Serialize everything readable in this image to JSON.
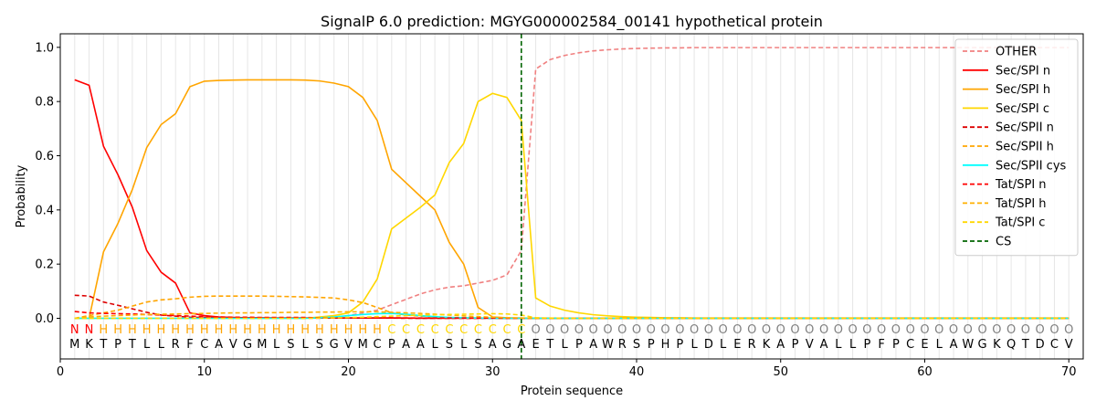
{
  "chart_data": {
    "type": "line",
    "title": "SignalP 6.0 prediction: MGYG000002584_00141 hypothetical protein",
    "xlabel": "Protein sequence",
    "ylabel": "Probability",
    "xlim": [
      0,
      71
    ],
    "ylim": [
      -0.15,
      1.05
    ],
    "xticks": [
      0,
      10,
      20,
      30,
      40,
      50,
      60,
      70
    ],
    "yticks": [
      0.0,
      0.2,
      0.4,
      0.6,
      0.8,
      1.0
    ],
    "xtick_labels": [
      "0",
      "10",
      "20",
      "30",
      "40",
      "50",
      "60",
      "70"
    ],
    "ytick_labels": [
      "0.0",
      "0.2",
      "0.4",
      "0.6",
      "0.8",
      "1.0"
    ],
    "grid": "vertical lines at each residue position",
    "legend_position": "top-right",
    "cleavage_site": 32,
    "sequence": [
      "M",
      "K",
      "T",
      "P",
      "T",
      "L",
      "L",
      "R",
      "F",
      "C",
      "A",
      "V",
      "G",
      "M",
      "L",
      "S",
      "L",
      "S",
      "G",
      "V",
      "M",
      "C",
      "P",
      "A",
      "A",
      "L",
      "S",
      "L",
      "S",
      "A",
      "G",
      "A",
      "E",
      "T",
      "L",
      "P",
      "A",
      "W",
      "R",
      "S",
      "P",
      "H",
      "P",
      "L",
      "D",
      "L",
      "E",
      "R",
      "K",
      "A",
      "P",
      "V",
      "A",
      "L",
      "L",
      "P",
      "F",
      "P",
      "C",
      "E",
      "L",
      "A",
      "W",
      "G",
      "K",
      "Q",
      "T",
      "D",
      "C",
      "V"
    ],
    "regions": [
      "N",
      "N",
      "H",
      "H",
      "H",
      "H",
      "H",
      "H",
      "H",
      "H",
      "H",
      "H",
      "H",
      "H",
      "H",
      "H",
      "H",
      "H",
      "H",
      "H",
      "H",
      "H",
      "C",
      "C",
      "C",
      "C",
      "C",
      "C",
      "C",
      "C",
      "C",
      "C",
      "O",
      "O",
      "O",
      "O",
      "O",
      "O",
      "O",
      "O",
      "O",
      "O",
      "O",
      "O",
      "O",
      "O",
      "O",
      "O",
      "O",
      "O",
      "O",
      "O",
      "O",
      "O",
      "O",
      "O",
      "O",
      "O",
      "O",
      "O",
      "O",
      "O",
      "O",
      "O",
      "O",
      "O",
      "O",
      "O",
      "O",
      "O"
    ],
    "region_colors": {
      "N": "#ff0000",
      "H": "#ffa500",
      "C": "#ffd700",
      "O": "#808080"
    },
    "series": [
      {
        "name": "OTHER",
        "color": "#f08080",
        "dash": "dashed",
        "values": [
          0.0,
          0.0,
          0.0,
          0.0,
          0.0,
          0.0,
          0.0,
          0.0,
          0.0,
          0.0,
          0.0,
          0.0,
          0.0,
          0.0,
          0.0,
          0.0,
          0.0,
          0.0,
          0.005,
          0.01,
          0.02,
          0.03,
          0.05,
          0.07,
          0.09,
          0.105,
          0.115,
          0.12,
          0.13,
          0.14,
          0.16,
          0.25,
          0.92,
          0.955,
          0.97,
          0.98,
          0.987,
          0.991,
          0.994,
          0.996,
          0.997,
          0.998,
          0.998,
          0.999,
          0.999,
          0.999,
          0.999,
          0.999,
          0.999,
          0.999,
          0.999,
          0.999,
          0.999,
          0.999,
          0.999,
          0.999,
          0.999,
          0.999,
          0.999,
          0.999,
          0.999,
          0.999,
          0.999,
          0.999,
          0.999,
          0.999,
          0.999,
          0.999,
          0.999,
          0.999
        ]
      },
      {
        "name": "Sec/SPI n",
        "color": "#ff0000",
        "dash": "solid",
        "values": [
          0.88,
          0.86,
          0.635,
          0.53,
          0.41,
          0.25,
          0.17,
          0.13,
          0.02,
          0.01,
          0.005,
          0.003,
          0.002,
          0.002,
          0.001,
          0.001,
          0.001,
          0.001,
          0.001,
          0.001,
          0.001,
          0.001,
          0.001,
          0.001,
          0.0,
          0.0,
          0.0,
          0.0,
          0.0,
          0.0,
          0.0,
          0.0,
          0.0,
          0.0,
          0.0,
          0.0,
          0.0,
          0.0,
          0.0,
          0.0,
          0.0,
          0.0,
          0.0,
          0.0,
          0.0,
          0.0,
          0.0,
          0.0,
          0.0,
          0.0,
          0.0,
          0.0,
          0.0,
          0.0,
          0.0,
          0.0,
          0.0,
          0.0,
          0.0,
          0.0,
          0.0,
          0.0,
          0.0,
          0.0,
          0.0,
          0.0,
          0.0,
          0.0,
          0.0,
          0.0
        ]
      },
      {
        "name": "Sec/SPI h",
        "color": "#ffa500",
        "dash": "solid",
        "values": [
          0.0,
          0.0,
          0.245,
          0.35,
          0.475,
          0.63,
          0.715,
          0.755,
          0.855,
          0.875,
          0.878,
          0.879,
          0.88,
          0.88,
          0.88,
          0.88,
          0.879,
          0.876,
          0.868,
          0.855,
          0.815,
          0.73,
          0.55,
          0.5,
          0.45,
          0.4,
          0.28,
          0.2,
          0.04,
          0.005,
          0.002,
          0.001,
          0.0,
          0.0,
          0.0,
          0.0,
          0.0,
          0.0,
          0.0,
          0.0,
          0.0,
          0.0,
          0.0,
          0.0,
          0.0,
          0.0,
          0.0,
          0.0,
          0.0,
          0.0,
          0.0,
          0.0,
          0.0,
          0.0,
          0.0,
          0.0,
          0.0,
          0.0,
          0.0,
          0.0,
          0.0,
          0.0,
          0.0,
          0.0,
          0.0,
          0.0,
          0.0,
          0.0,
          0.0,
          0.0
        ]
      },
      {
        "name": "Sec/SPI c",
        "color": "#ffd700",
        "dash": "solid",
        "values": [
          0.0,
          0.0,
          0.0,
          0.0,
          0.0,
          0.0,
          0.0,
          0.0,
          0.0,
          0.0,
          0.0,
          0.0,
          0.0,
          0.0,
          0.0,
          0.0,
          0.0,
          0.005,
          0.01,
          0.02,
          0.06,
          0.145,
          0.33,
          0.37,
          0.41,
          0.455,
          0.575,
          0.645,
          0.8,
          0.83,
          0.815,
          0.73,
          0.075,
          0.045,
          0.03,
          0.02,
          0.013,
          0.009,
          0.006,
          0.004,
          0.003,
          0.002,
          0.002,
          0.001,
          0.001,
          0.001,
          0.001,
          0.001,
          0.001,
          0.001,
          0.001,
          0.001,
          0.001,
          0.001,
          0.001,
          0.001,
          0.001,
          0.001,
          0.001,
          0.001,
          0.001,
          0.001,
          0.001,
          0.001,
          0.001,
          0.001,
          0.001,
          0.001,
          0.001,
          0.001
        ]
      },
      {
        "name": "Sec/SPII n",
        "color": "#dd0000",
        "dash": "dashed",
        "values": [
          0.085,
          0.082,
          0.06,
          0.048,
          0.035,
          0.022,
          0.012,
          0.008,
          0.004,
          0.003,
          0.002,
          0.002,
          0.002,
          0.001,
          0.001,
          0.001,
          0.001,
          0.001,
          0.001,
          0.001,
          0.001,
          0.001,
          0.001,
          0.0,
          0.0,
          0.0,
          0.0,
          0.0,
          0.0,
          0.0,
          0.0,
          0.0,
          0.0,
          0.0,
          0.0,
          0.0,
          0.0,
          0.0,
          0.0,
          0.0,
          0.0,
          0.0,
          0.0,
          0.0,
          0.0,
          0.0,
          0.0,
          0.0,
          0.0,
          0.0,
          0.0,
          0.0,
          0.0,
          0.0,
          0.0,
          0.0,
          0.0,
          0.0,
          0.0,
          0.0,
          0.0,
          0.0,
          0.0,
          0.0,
          0.0,
          0.0,
          0.0,
          0.0,
          0.0,
          0.0
        ]
      },
      {
        "name": "Sec/SPII h",
        "color": "#ffa500",
        "dash": "dashed",
        "values": [
          0.0,
          0.01,
          0.02,
          0.03,
          0.045,
          0.06,
          0.068,
          0.072,
          0.078,
          0.081,
          0.082,
          0.082,
          0.082,
          0.082,
          0.081,
          0.08,
          0.079,
          0.077,
          0.075,
          0.068,
          0.058,
          0.04,
          0.02,
          0.012,
          0.008,
          0.005,
          0.003,
          0.002,
          0.001,
          0.001,
          0.0,
          0.0,
          0.0,
          0.0,
          0.0,
          0.0,
          0.0,
          0.0,
          0.0,
          0.0,
          0.0,
          0.0,
          0.0,
          0.0,
          0.0,
          0.0,
          0.0,
          0.0,
          0.0,
          0.0,
          0.0,
          0.0,
          0.0,
          0.0,
          0.0,
          0.0,
          0.0,
          0.0,
          0.0,
          0.0,
          0.0,
          0.0,
          0.0,
          0.0,
          0.0,
          0.0,
          0.0,
          0.0,
          0.0,
          0.0
        ]
      },
      {
        "name": "Sec/SPII cys",
        "color": "#00ffff",
        "dash": "solid",
        "values": [
          0.0,
          0.0,
          0.0,
          0.0,
          0.0,
          0.0,
          0.0,
          0.0,
          0.0,
          0.0,
          0.0,
          0.0,
          0.0,
          0.0,
          0.0,
          0.0,
          0.0,
          0.002,
          0.005,
          0.01,
          0.014,
          0.017,
          0.018,
          0.015,
          0.01,
          0.006,
          0.003,
          0.002,
          0.001,
          0.0,
          0.0,
          0.0,
          0.0,
          0.0,
          0.0,
          0.0,
          0.0,
          0.0,
          0.0,
          0.0,
          0.0,
          0.0,
          0.0,
          0.0,
          0.0,
          0.0,
          0.0,
          0.0,
          0.0,
          0.0,
          0.0,
          0.0,
          0.0,
          0.0,
          0.0,
          0.0,
          0.0,
          0.0,
          0.0,
          0.0,
          0.0,
          0.0,
          0.0,
          0.0,
          0.0,
          0.0,
          0.0,
          0.0,
          0.0,
          0.0
        ]
      },
      {
        "name": "Tat/SPI n",
        "color": "#ff0000",
        "dash": "dashed",
        "values": [
          0.025,
          0.02,
          0.018,
          0.017,
          0.016,
          0.014,
          0.012,
          0.01,
          0.008,
          0.006,
          0.005,
          0.004,
          0.004,
          0.003,
          0.003,
          0.003,
          0.003,
          0.002,
          0.002,
          0.002,
          0.002,
          0.002,
          0.002,
          0.001,
          0.001,
          0.001,
          0.001,
          0.001,
          0.001,
          0.001,
          0.0,
          0.0,
          0.0,
          0.0,
          0.0,
          0.0,
          0.0,
          0.0,
          0.0,
          0.0,
          0.0,
          0.0,
          0.0,
          0.0,
          0.0,
          0.0,
          0.0,
          0.0,
          0.0,
          0.0,
          0.0,
          0.0,
          0.0,
          0.0,
          0.0,
          0.0,
          0.0,
          0.0,
          0.0,
          0.0,
          0.0,
          0.0,
          0.0,
          0.0,
          0.0,
          0.0,
          0.0,
          0.0,
          0.0,
          0.0
        ]
      },
      {
        "name": "Tat/SPI h",
        "color": "#ffb000",
        "dash": "dashed",
        "values": [
          0.0,
          0.005,
          0.008,
          0.01,
          0.012,
          0.014,
          0.015,
          0.016,
          0.017,
          0.018,
          0.019,
          0.02,
          0.02,
          0.021,
          0.021,
          0.022,
          0.022,
          0.023,
          0.023,
          0.024,
          0.024,
          0.024,
          0.022,
          0.02,
          0.018,
          0.015,
          0.012,
          0.009,
          0.006,
          0.004,
          0.002,
          0.001,
          0.0,
          0.0,
          0.0,
          0.0,
          0.0,
          0.0,
          0.0,
          0.0,
          0.0,
          0.0,
          0.0,
          0.0,
          0.0,
          0.0,
          0.0,
          0.0,
          0.0,
          0.0,
          0.0,
          0.0,
          0.0,
          0.0,
          0.0,
          0.0,
          0.0,
          0.0,
          0.0,
          0.0,
          0.0,
          0.0,
          0.0,
          0.0,
          0.0,
          0.0,
          0.0,
          0.0,
          0.0,
          0.0
        ]
      },
      {
        "name": "Tat/SPI c",
        "color": "#ffd700",
        "dash": "dashed",
        "values": [
          0.0,
          0.0,
          0.0,
          0.0,
          0.0,
          0.0,
          0.0,
          0.0,
          0.0,
          0.0,
          0.0,
          0.0,
          0.0,
          0.0,
          0.0,
          0.0,
          0.0,
          0.001,
          0.002,
          0.003,
          0.004,
          0.006,
          0.008,
          0.01,
          0.012,
          0.013,
          0.014,
          0.015,
          0.016,
          0.017,
          0.016,
          0.012,
          0.002,
          0.001,
          0.0,
          0.0,
          0.0,
          0.0,
          0.0,
          0.0,
          0.0,
          0.0,
          0.0,
          0.0,
          0.0,
          0.0,
          0.0,
          0.0,
          0.0,
          0.0,
          0.0,
          0.0,
          0.0,
          0.0,
          0.0,
          0.0,
          0.0,
          0.0,
          0.0,
          0.0,
          0.0,
          0.0,
          0.0,
          0.0,
          0.0,
          0.0,
          0.0,
          0.0,
          0.0,
          0.0
        ]
      }
    ],
    "cs_legend": {
      "name": "CS",
      "color": "#006400",
      "dash": "dashed"
    }
  }
}
